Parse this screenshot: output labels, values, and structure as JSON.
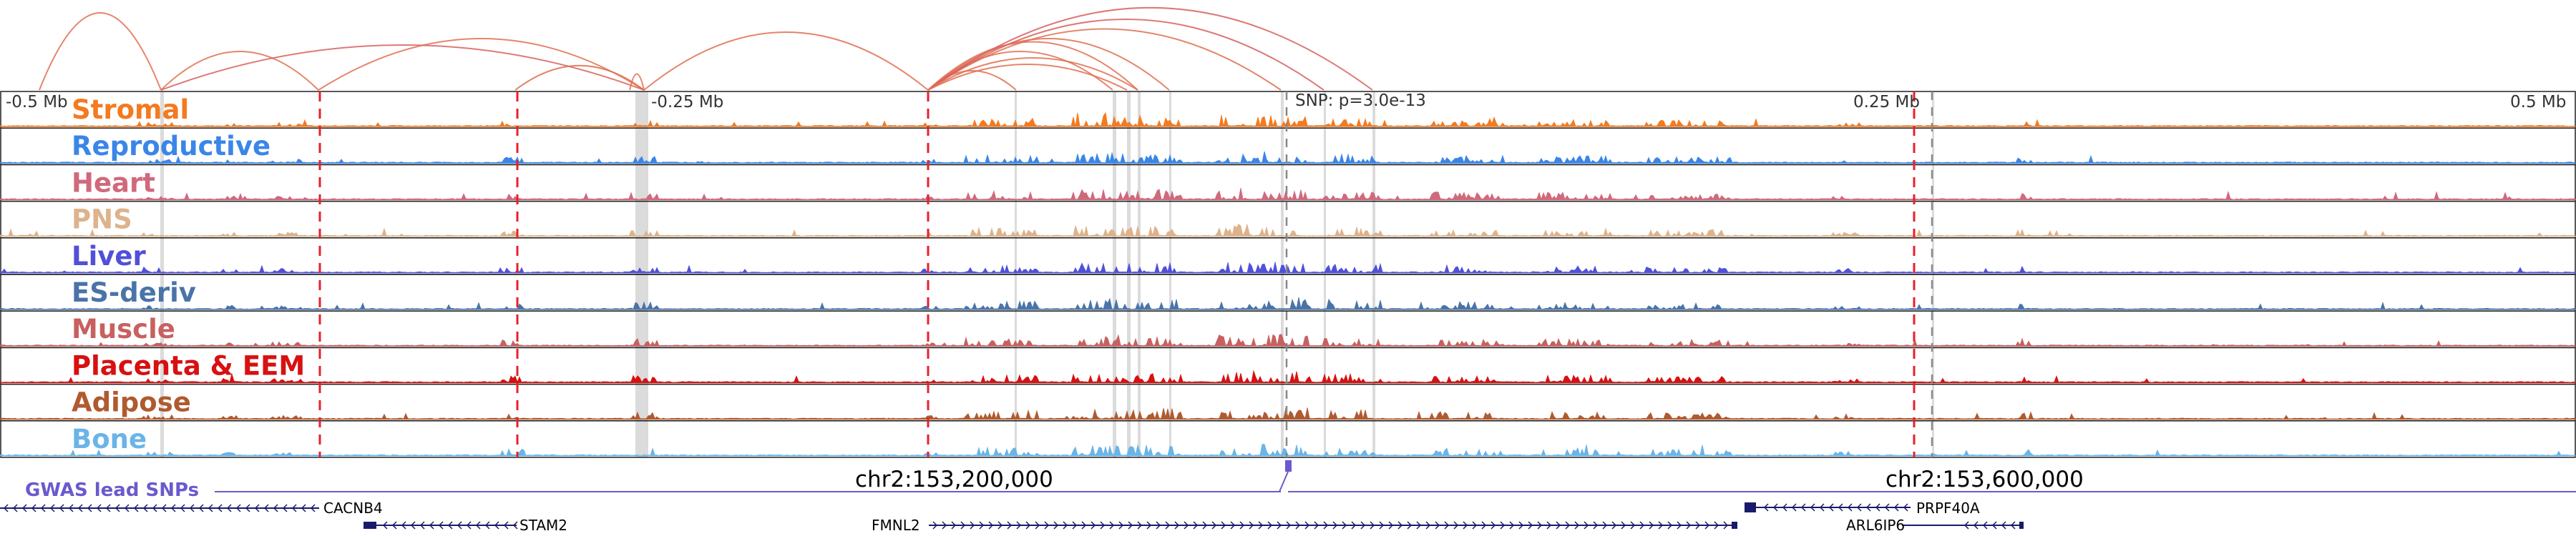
{
  "axis": {
    "left_label": "-0.5 Mb",
    "mid_left_label": "-0.25 Mb",
    "snp_label": "SNP: p=3.0e-13",
    "mid_right_label": "0.25 Mb",
    "right_label": "0.5 Mb"
  },
  "tracks": [
    {
      "name": "Stromal",
      "color": "#f47a20"
    },
    {
      "name": "Reproductive",
      "color": "#3a86e8"
    },
    {
      "name": "Heart",
      "color": "#d0697c"
    },
    {
      "name": "PNS",
      "color": "#ddb38c"
    },
    {
      "name": "Liver",
      "color": "#5050d8"
    },
    {
      "name": "ES-deriv",
      "color": "#4a74a8"
    },
    {
      "name": "Muscle",
      "color": "#c86060"
    },
    {
      "name": "Placenta & EEM",
      "color": "#d81010"
    },
    {
      "name": "Adipose",
      "color": "#b05a30"
    },
    {
      "name": "Bone",
      "color": "#6ab4e8"
    }
  ],
  "gwas": {
    "label": "GWAS lead SNPs",
    "color": "#6a5acd"
  },
  "coordinates": {
    "left": "chr2:153,200,000",
    "right": "chr2:153,600,000"
  },
  "genes": [
    {
      "name": "CACNB4",
      "strand": "-"
    },
    {
      "name": "STAM2",
      "strand": "-"
    },
    {
      "name": "FMNL2",
      "strand": "+"
    },
    {
      "name": "PRPF40A",
      "strand": "-"
    },
    {
      "name": "ARL6IP6",
      "strand": "-"
    }
  ],
  "colors": {
    "red_marker": "#e8202a",
    "loop_color": "#e07050",
    "loop_color_alt": "#d86060",
    "grey_marker": "#bbbbbb",
    "gene_color": "#1a1a6a"
  }
}
